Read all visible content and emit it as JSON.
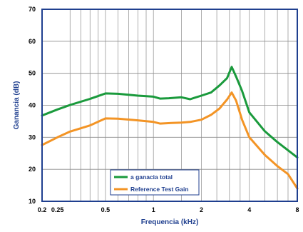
{
  "chart_data": {
    "type": "line",
    "xlabel": "Frequencia (kHz)",
    "ylabel": "Ganancia (dB)",
    "x_scale": "log",
    "xlim": [
      0.2,
      8
    ],
    "ylim": [
      10,
      70
    ],
    "x_ticks": [
      {
        "value": 0.2,
        "label": "0.2"
      },
      {
        "value": 0.25,
        "label": "0.25"
      },
      {
        "value": 0.5,
        "label": "0.5"
      },
      {
        "value": 1,
        "label": "1"
      },
      {
        "value": 2,
        "label": "2"
      },
      {
        "value": 4,
        "label": "4"
      },
      {
        "value": 8,
        "label": "8"
      }
    ],
    "x_gridlines": [
      0.3,
      0.35,
      0.4,
      0.45,
      0.5,
      0.6,
      0.7,
      0.8,
      0.9,
      1,
      1.5,
      2,
      2.5,
      3,
      3.5,
      4,
      5,
      6,
      7
    ],
    "y_ticks": [
      10,
      20,
      30,
      40,
      50,
      60,
      70
    ],
    "legend_position": "bottom-center",
    "series": [
      {
        "name": "a ganacia total",
        "color": "#1a9a3c",
        "x": [
          0.2,
          0.25,
          0.3,
          0.4,
          0.5,
          0.6,
          0.8,
          1.0,
          1.1,
          1.25,
          1.5,
          1.7,
          1.8,
          2.0,
          2.3,
          2.6,
          2.9,
          3.1,
          3.3,
          3.6,
          4.0,
          5.0,
          6.0,
          8.0
        ],
        "y": [
          36.8,
          38.7,
          40.1,
          42.0,
          43.7,
          43.6,
          43.0,
          42.7,
          42.1,
          42.2,
          42.5,
          41.9,
          42.3,
          43.0,
          44.0,
          46.2,
          48.5,
          52.0,
          49.0,
          44.5,
          37.8,
          31.9,
          28.5,
          23.7
        ]
      },
      {
        "name": "Reference Test Gain",
        "color": "#f39425",
        "x": [
          0.2,
          0.25,
          0.3,
          0.4,
          0.5,
          0.6,
          0.8,
          1.0,
          1.1,
          1.3,
          1.5,
          1.7,
          2.0,
          2.3,
          2.6,
          2.9,
          3.1,
          3.3,
          3.6,
          4.0,
          5.0,
          6.0,
          7.0,
          8.0
        ],
        "y": [
          27.6,
          30.0,
          31.8,
          33.7,
          35.9,
          35.8,
          35.3,
          34.8,
          34.3,
          34.5,
          34.6,
          34.8,
          35.5,
          37.0,
          39.0,
          41.8,
          44.0,
          41.5,
          35.5,
          30.0,
          24.5,
          21.0,
          18.5,
          14.0
        ]
      }
    ]
  }
}
